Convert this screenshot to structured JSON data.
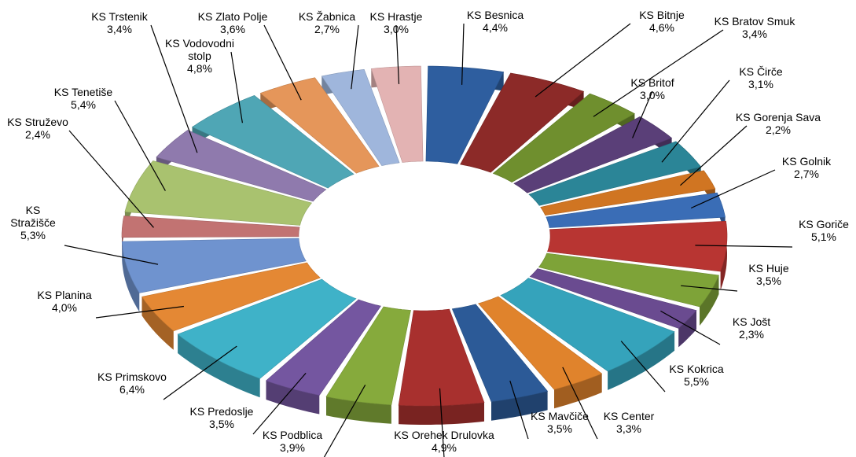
{
  "chart_data": {
    "type": "pie",
    "style": "3d-exploded",
    "legend": "none",
    "slices": [
      {
        "label": "KS Besnica",
        "value": 4.4,
        "display": "4,4%",
        "color": "#2e5e9f"
      },
      {
        "label": "KS Bitnje",
        "value": 4.6,
        "display": "4,6%",
        "color": "#8c2a28"
      },
      {
        "label": "KS Bratov Smuk",
        "value": 3.4,
        "display": "3,4%",
        "color": "#6f8f2e"
      },
      {
        "label": "KS Britof",
        "value": 3.0,
        "display": "3,0%",
        "color": "#5a3f78"
      },
      {
        "label": "KS Čirče",
        "value": 3.1,
        "display": "3,1%",
        "color": "#2b8597"
      },
      {
        "label": "KS Gorenja Sava",
        "value": 2.2,
        "display": "2,2%",
        "color": "#d07522"
      },
      {
        "label": "KS Golnik",
        "value": 2.7,
        "display": "2,7%",
        "color": "#3a6db6"
      },
      {
        "label": "KS Goriče",
        "value": 5.1,
        "display": "5,1%",
        "color": "#b83532"
      },
      {
        "label": "KS Huje",
        "value": 3.5,
        "display": "3,5%",
        "color": "#7ea338"
      },
      {
        "label": "KS Jošt",
        "value": 2.3,
        "display": "2,3%",
        "color": "#6a4b90"
      },
      {
        "label": "KS Kokrica",
        "value": 5.5,
        "display": "5,5%",
        "color": "#35a3bb"
      },
      {
        "label": "KS Center",
        "value": 3.3,
        "display": "3,3%",
        "color": "#e0832c"
      },
      {
        "label": "KS Mavčiče",
        "value": 3.5,
        "display": "3,5%",
        "color": "#2c5a97"
      },
      {
        "label": "KS Orehek Drulovka",
        "value": 4.9,
        "display": "4,9%",
        "color": "#a8302e"
      },
      {
        "label": "KS Podblica",
        "value": 3.9,
        "display": "3,9%",
        "color": "#86aa3c"
      },
      {
        "label": "KS Predoslje",
        "value": 3.5,
        "display": "3,5%",
        "color": "#7456a0"
      },
      {
        "label": "KS Primskovo",
        "value": 6.4,
        "display": "6,4%",
        "color": "#3fb2c8"
      },
      {
        "label": "KS Planina",
        "value": 4.0,
        "display": "4,0%",
        "color": "#e48834"
      },
      {
        "label": "KS Stražišče",
        "value": 5.3,
        "display": "5,3%",
        "color": "#6f93cf"
      },
      {
        "label": "KS Struževo",
        "value": 2.4,
        "display": "2,4%",
        "color": "#c27372"
      },
      {
        "label": "KS Tenetiše",
        "value": 5.4,
        "display": "5,4%",
        "color": "#a9c26f"
      },
      {
        "label": "KS Trstenik",
        "value": 3.4,
        "display": "3,4%",
        "color": "#8f7aad"
      },
      {
        "label": "KS Vodovodni stolp",
        "value": 4.8,
        "display": "4,8%",
        "color": "#4fa6b5"
      },
      {
        "label": "KS Zlato Polje",
        "value": 3.6,
        "display": "3,6%",
        "color": "#e5965a"
      },
      {
        "label": "KS Žabnica",
        "value": 2.7,
        "display": "2,7%",
        "color": "#9fb6dc"
      },
      {
        "label": "KS Hrastje",
        "value": 3.0,
        "display": "3,0%",
        "color": "#e3b3b3"
      }
    ]
  }
}
